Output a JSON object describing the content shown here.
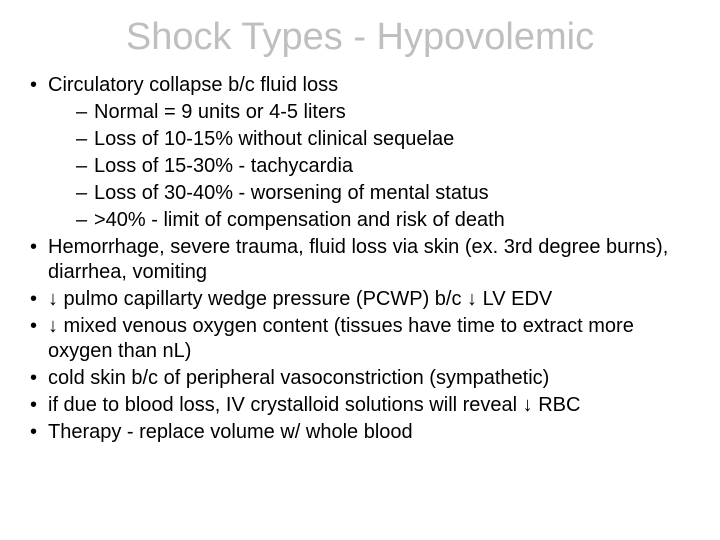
{
  "title": "Shock Types - Hypovolemic",
  "title_color": "#bfbfbf",
  "title_fontsize": 38,
  "body_fontsize": 20,
  "background_color": "#ffffff",
  "text_color": "#000000",
  "bullets": [
    {
      "text": "Circulatory collapse b/c fluid loss",
      "sub": [
        "Normal = 9 units or 4-5 liters",
        "Loss of 10-15% without clinical sequelae",
        "Loss of 15-30% - tachycardia",
        "Loss of 30-40% - worsening of mental status",
        ">40% - limit of compensation and risk of death"
      ]
    },
    {
      "text": "Hemorrhage, severe trauma, fluid loss via skin (ex. 3rd degree burns), diarrhea, vomiting"
    },
    {
      "text": "↓ pulmo capillarty wedge pressure (PCWP) b/c ↓ LV EDV"
    },
    {
      "text": "↓ mixed venous oxygen content (tissues have time to extract more oxygen than nL)"
    },
    {
      "text": "cold skin b/c of peripheral vasoconstriction (sympathetic)"
    },
    {
      "text": "if due to blood loss, IV crystalloid solutions will reveal ↓ RBC"
    },
    {
      "text": "Therapy - replace volume w/ whole blood"
    }
  ]
}
